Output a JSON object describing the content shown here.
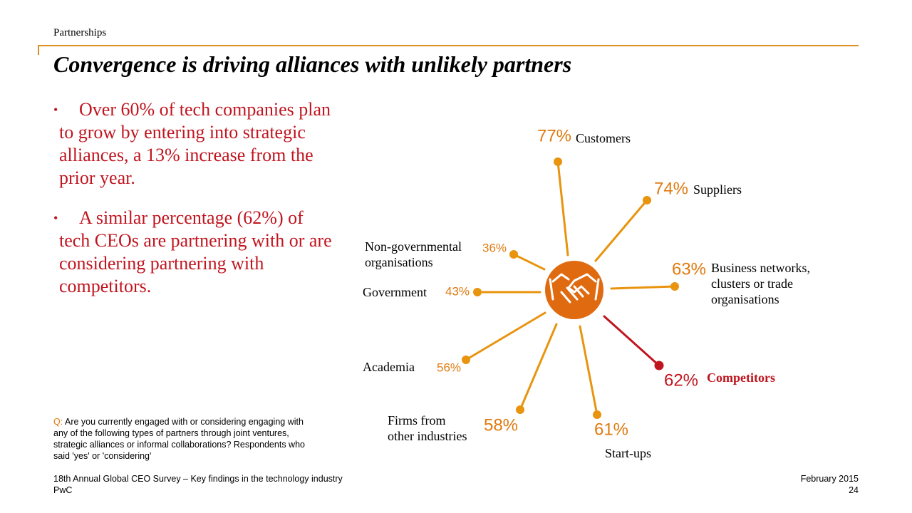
{
  "header": {
    "section": "Partnerships",
    "title": "Convergence is driving alliances with unlikely partners"
  },
  "bullets": [
    "Over 60% of tech companies plan to grow by entering into strategic alliances, a 13% increase from the prior year.",
    "A similar percentage (62%) of tech CEOs are partnering with or are considering partnering with competitors."
  ],
  "question": {
    "prefix": "Q:",
    "text": "Are you currently engaged with or considering engaging with any of the following types of partners through joint ventures, strategic alliances or informal collaborations? Respondents who said 'yes' or 'considering'"
  },
  "footer": {
    "source": "18th Annual Global CEO Survey – Key findings in the technology industry",
    "org": "PwC",
    "date": "February 2015",
    "page": "24"
  },
  "colors": {
    "accent": "#e8940f",
    "center": "#e06a10",
    "highlight": "#c0151f",
    "pct_text": "#e07a10"
  },
  "center_icon": "handshake-icon",
  "chart_data": {
    "type": "radial",
    "unit": "%",
    "series": [
      {
        "category": "Customers",
        "value": 77,
        "label": "77%"
      },
      {
        "category": "Suppliers",
        "value": 74,
        "label": "74%"
      },
      {
        "category": "Business networks, clusters or trade organisations",
        "value": 63,
        "label": "63%"
      },
      {
        "category": "Competitors",
        "value": 62,
        "label": "62%",
        "highlight": true
      },
      {
        "category": "Start-ups",
        "value": 61,
        "label": "61%"
      },
      {
        "category": "Firms from other industries",
        "value": 58,
        "label": "58%"
      },
      {
        "category": "Academia",
        "value": 56,
        "label": "56%"
      },
      {
        "category": "Government",
        "value": 43,
        "label": "43%"
      },
      {
        "category": "Non-governmental organisations",
        "value": 36,
        "label": "36%"
      }
    ]
  }
}
